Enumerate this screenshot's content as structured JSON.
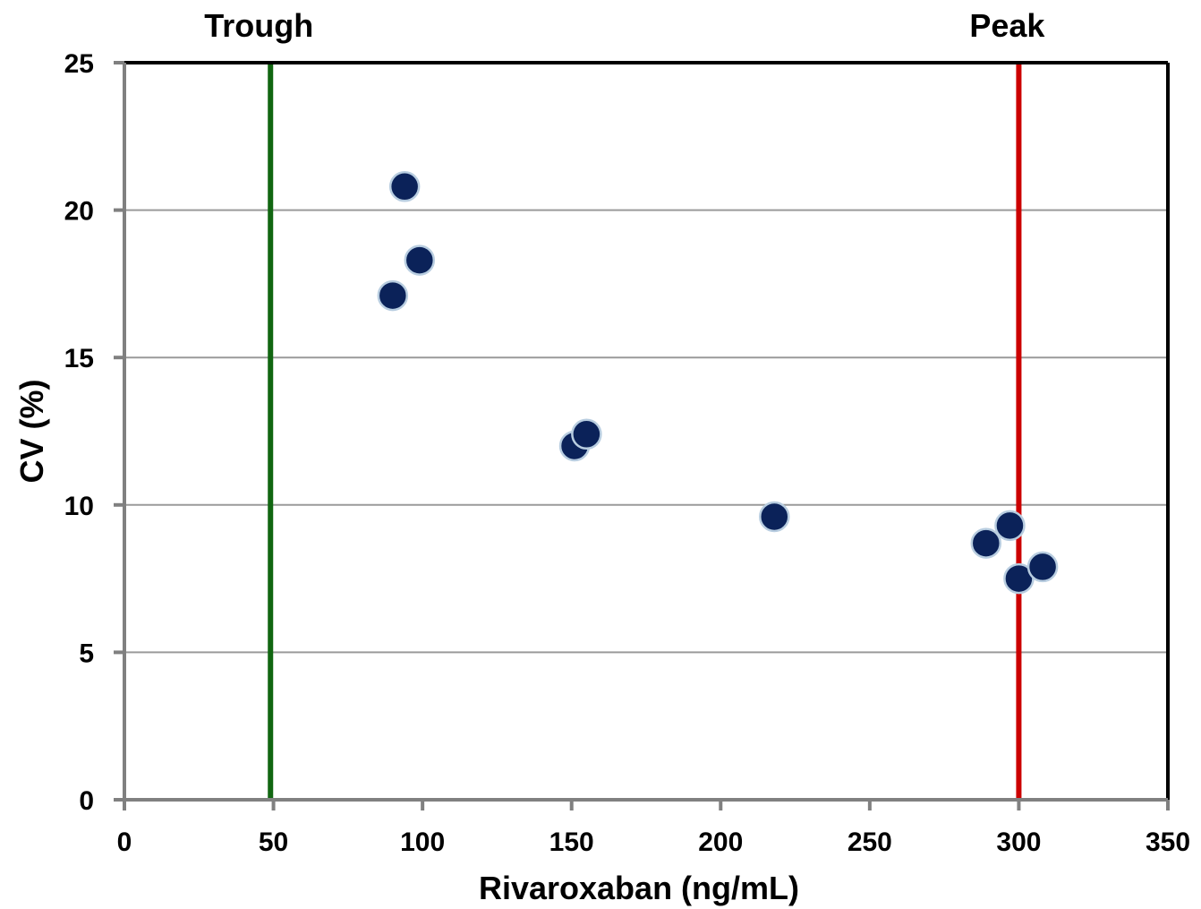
{
  "chart_data": {
    "type": "scatter",
    "title": "",
    "xlabel": "Rivaroxaban (ng/mL)",
    "ylabel": "CV (%)",
    "xlim": [
      0,
      350
    ],
    "ylim": [
      0,
      25
    ],
    "x_ticks": [
      0,
      50,
      100,
      150,
      200,
      250,
      300,
      350
    ],
    "y_ticks": [
      0,
      5,
      10,
      15,
      20,
      25
    ],
    "grid": "horizontal",
    "legend": "none",
    "series": [
      {
        "color": "#0b2259",
        "points": [
          {
            "x": 94,
            "y": 20.8
          },
          {
            "x": 99,
            "y": 18.3
          },
          {
            "x": 90,
            "y": 17.1
          },
          {
            "x": 151,
            "y": 12.0
          },
          {
            "x": 155,
            "y": 12.4
          },
          {
            "x": 218,
            "y": 9.6
          },
          {
            "x": 289,
            "y": 8.7
          },
          {
            "x": 297,
            "y": 9.3
          },
          {
            "x": 300,
            "y": 7.5
          },
          {
            "x": 308,
            "y": 7.9
          }
        ]
      }
    ],
    "reference_lines": [
      {
        "x": 49,
        "label": "Trough",
        "color": "#116611"
      },
      {
        "x": 300,
        "label": "Peak",
        "color": "#cc0000"
      }
    ]
  }
}
